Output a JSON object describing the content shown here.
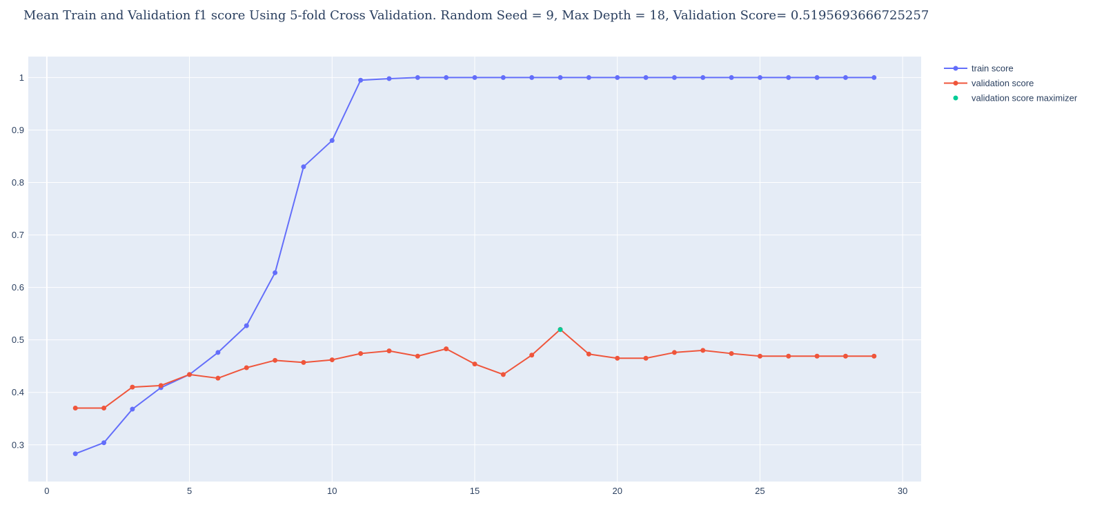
{
  "chart_data": {
    "type": "line",
    "title": "Mean Train and Validation f1 score Using 5-fold Cross Validation. Random Seed = 9, Max Depth = 18, Validation Score= 0.5195693666725257",
    "xlabel": "",
    "ylabel": "",
    "xlim": [
      -0.65,
      30.65
    ],
    "ylim": [
      0.23,
      1.04
    ],
    "xticks": [
      0,
      5,
      10,
      15,
      20,
      25,
      30
    ],
    "xtick_labels": [
      "0",
      "5",
      "10",
      "15",
      "20",
      "25",
      "30"
    ],
    "yticks": [
      0.3,
      0.4,
      0.5,
      0.6,
      0.7,
      0.8,
      0.9,
      1
    ],
    "ytick_labels": [
      "0.3",
      "0.4",
      "0.5",
      "0.6",
      "0.7",
      "0.8",
      "0.9",
      "1"
    ],
    "grid": true,
    "legend_position": "top-right",
    "background_color": "#e5ecf6",
    "series": [
      {
        "name": "train score",
        "mode": "lines+markers",
        "color": "#636efa",
        "x": [
          1,
          2,
          3,
          4,
          5,
          6,
          7,
          8,
          9,
          10,
          11,
          12,
          13,
          14,
          15,
          16,
          17,
          18,
          19,
          20,
          21,
          22,
          23,
          24,
          25,
          26,
          27,
          28,
          29
        ],
        "y": [
          0.283,
          0.304,
          0.368,
          0.409,
          0.434,
          0.476,
          0.527,
          0.628,
          0.83,
          0.88,
          0.995,
          0.998,
          1.0,
          1.0,
          1.0,
          1.0,
          1.0,
          1.0,
          1.0,
          1.0,
          1.0,
          1.0,
          1.0,
          1.0,
          1.0,
          1.0,
          1.0,
          1.0,
          1.0
        ]
      },
      {
        "name": "validation score",
        "mode": "lines+markers",
        "color": "#ef553b",
        "x": [
          1,
          2,
          3,
          4,
          5,
          6,
          7,
          8,
          9,
          10,
          11,
          12,
          13,
          14,
          15,
          16,
          17,
          18,
          19,
          20,
          21,
          22,
          23,
          24,
          25,
          26,
          27,
          28,
          29
        ],
        "y": [
          0.37,
          0.37,
          0.41,
          0.413,
          0.434,
          0.427,
          0.447,
          0.461,
          0.457,
          0.462,
          0.474,
          0.479,
          0.469,
          0.483,
          0.454,
          0.434,
          0.471,
          0.52,
          0.473,
          0.465,
          0.465,
          0.476,
          0.48,
          0.474,
          0.469,
          0.469,
          0.469,
          0.469,
          0.469
        ]
      },
      {
        "name": "validation score maximizer",
        "mode": "markers",
        "color": "#00cc96",
        "x": [
          18
        ],
        "y": [
          0.5195693666725257
        ]
      }
    ]
  }
}
